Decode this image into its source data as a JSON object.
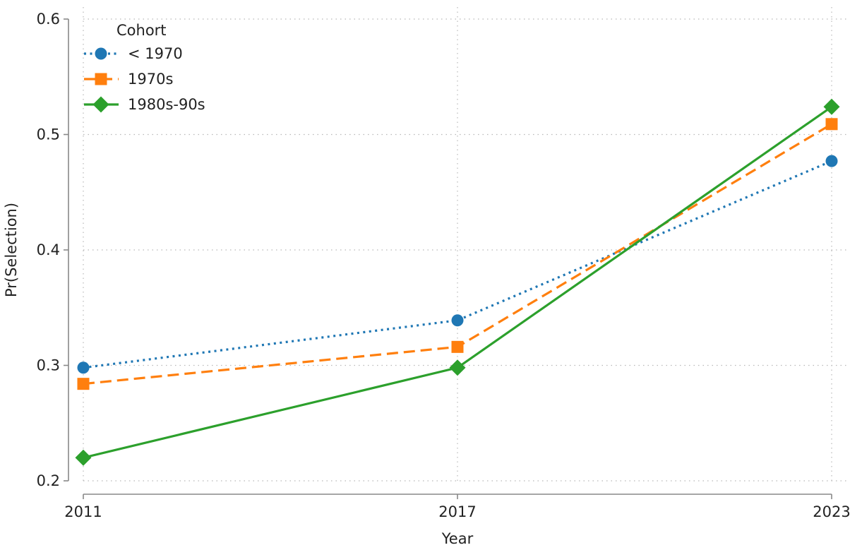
{
  "chart_data": {
    "type": "line",
    "xlabel": "Year",
    "ylabel": "Pr(Selection)",
    "x": [
      2011,
      2017,
      2023
    ],
    "x_tick_labels": [
      "2011",
      "2017",
      "2023"
    ],
    "ylim": [
      0.2,
      0.6
    ],
    "y_ticks": [
      0.2,
      0.3,
      0.4,
      0.5,
      0.6
    ],
    "y_tick_labels": [
      "0.2",
      "0.3",
      "0.4",
      "0.5",
      "0.6"
    ],
    "grid": true,
    "legend": {
      "title": "Cohort",
      "position": "top-left"
    },
    "series": [
      {
        "name": "< 1970",
        "values": [
          0.298,
          0.339,
          0.477
        ],
        "color": "#1f77b4",
        "marker": "circle",
        "line_style": "dotted"
      },
      {
        "name": "1970s",
        "values": [
          0.284,
          0.316,
          0.509
        ],
        "color": "#ff7f0e",
        "marker": "square",
        "line_style": "dashed"
      },
      {
        "name": "1980s-90s",
        "values": [
          0.22,
          0.298,
          0.524
        ],
        "color": "#2ca02c",
        "marker": "diamond",
        "line_style": "solid"
      }
    ]
  }
}
